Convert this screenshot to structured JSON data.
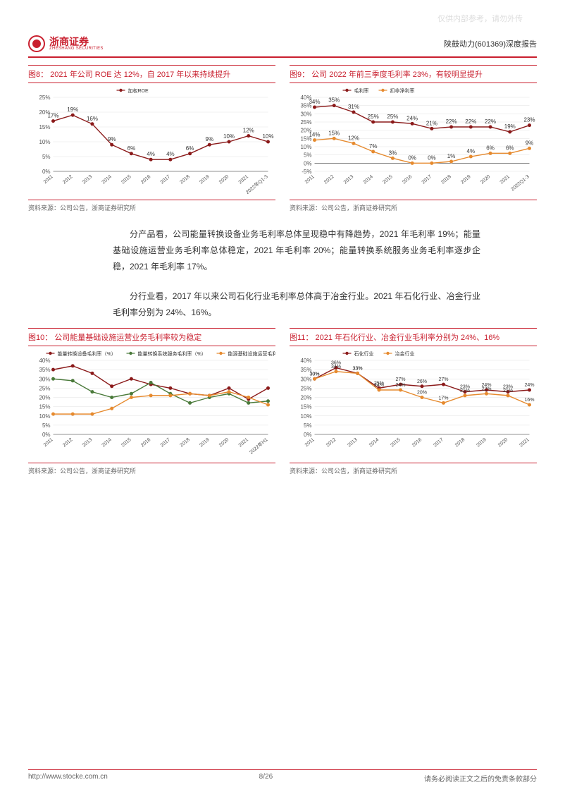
{
  "watermark": "仅供内部参考，请勿外传",
  "brand": {
    "cn": "浙商证券",
    "en": "ZHESHANG SECURITIES"
  },
  "doc_title": "陕鼓动力(601369)深度报告",
  "source_text": "资料来源：公司公告，浙商证券研究所",
  "footer": {
    "url": "http://www.stocke.com.cn",
    "page": "8/26",
    "disclaimer": "请务必阅读正文之后的免责条款部分"
  },
  "colors": {
    "brand_red": "#c91f2e",
    "dark_red": "#8b1a1a",
    "orange": "#e68a2e",
    "green": "#4a7a3a",
    "axis": "#333333",
    "grid": "#dddddd",
    "bg": "#ffffff"
  },
  "para1": "分产品看，公司能量转换设备业务毛利率总体呈现稳中有降趋势，2021 年毛利率 19%；能量基础设施运营业务毛利率总体稳定，2021 年毛利率 20%；能量转换系统服务业务毛利率逐步企稳，2021 年毛利率 17%。",
  "para2": "分行业看，2017 年以来公司石化行业毛利率总体高于冶金行业。2021 年石化行业、冶金行业毛利率分别为 24%、16%。",
  "fig8": {
    "title": "图8：   2021 年公司 ROE 达 12%，自 2017 年以来持续提升",
    "type": "line",
    "legend": [
      "加权ROE"
    ],
    "categories": [
      "2011",
      "2012",
      "2013",
      "2014",
      "2015",
      "2016",
      "2017",
      "2018",
      "2019",
      "2020",
      "2021",
      "2022年Q1-3"
    ],
    "series": [
      [
        17,
        19,
        16,
        9,
        6,
        4,
        4,
        6,
        9,
        10,
        12,
        10
      ]
    ],
    "colors": [
      "#8b1a1a"
    ],
    "ylim": [
      0,
      25
    ],
    "ytick_step": 5,
    "ytick_suffix": "%",
    "label_fontsize": 8,
    "data_labels": true
  },
  "fig9": {
    "title": "图9：   公司 2022 年前三季度毛利率 23%，有较明显提升",
    "type": "line",
    "legend": [
      "毛利率",
      "扣非净利率"
    ],
    "categories": [
      "2011",
      "2012",
      "2013",
      "2014",
      "2015",
      "2016",
      "2017",
      "2018",
      "2019",
      "2020",
      "2021",
      "2022Q1-3"
    ],
    "series": [
      [
        34,
        35,
        31,
        25,
        25,
        24,
        21,
        22,
        22,
        22,
        19,
        23
      ],
      [
        14,
        15,
        12,
        7,
        3,
        0,
        0,
        1,
        4,
        6,
        6,
        9
      ]
    ],
    "colors": [
      "#8b1a1a",
      "#e68a2e"
    ],
    "ylim": [
      -5,
      40
    ],
    "ytick_step": 5,
    "ytick_suffix": "%",
    "label_fontsize": 8,
    "data_labels": true
  },
  "fig10": {
    "title": "图10：   公司能量基础设施运营业务毛利率较为稳定",
    "type": "line",
    "legend": [
      "能量转换设备毛利率（%）",
      "能量转换系统服务毛利率（%）",
      "能源基础设施运营毛利率（%）"
    ],
    "categories": [
      "2011",
      "2012",
      "2013",
      "2014",
      "2015",
      "2016",
      "2017",
      "2018",
      "2019",
      "2020",
      "2021",
      "2022年H1"
    ],
    "series": [
      [
        35,
        37,
        33,
        26,
        30,
        27,
        25,
        22,
        21,
        25,
        19,
        25
      ],
      [
        30,
        29,
        23,
        20,
        22,
        28,
        22,
        17,
        20,
        22,
        17,
        18
      ],
      [
        11,
        11,
        11,
        14,
        20,
        21,
        21,
        22,
        21,
        23,
        20,
        16
      ]
    ],
    "colors": [
      "#8b1a1a",
      "#4a7a3a",
      "#e68a2e"
    ],
    "ylim": [
      0,
      40
    ],
    "ytick_step": 5,
    "ytick_suffix": "%",
    "label_fontsize": 8,
    "data_labels": false
  },
  "fig11": {
    "title": "图11：   2021 年石化行业、冶金行业毛利率分别为 24%、16%",
    "type": "line",
    "legend": [
      "石化行业",
      "冶金行业"
    ],
    "categories": [
      "2011",
      "2012",
      "2013",
      "2014",
      "2015",
      "2016",
      "2017",
      "2018",
      "2019",
      "2020",
      "2021"
    ],
    "series": [
      [
        30,
        36,
        33,
        25,
        27,
        26,
        27,
        23,
        24,
        23,
        24
      ],
      [
        30,
        34,
        33,
        24,
        24,
        20,
        17,
        21,
        22,
        21,
        16
      ]
    ],
    "colors": [
      "#8b1a1a",
      "#e68a2e"
    ],
    "ylim": [
      0,
      40
    ],
    "ytick_step": 5,
    "ytick_suffix": "%",
    "label_fontsize": 7,
    "data_labels": true
  }
}
